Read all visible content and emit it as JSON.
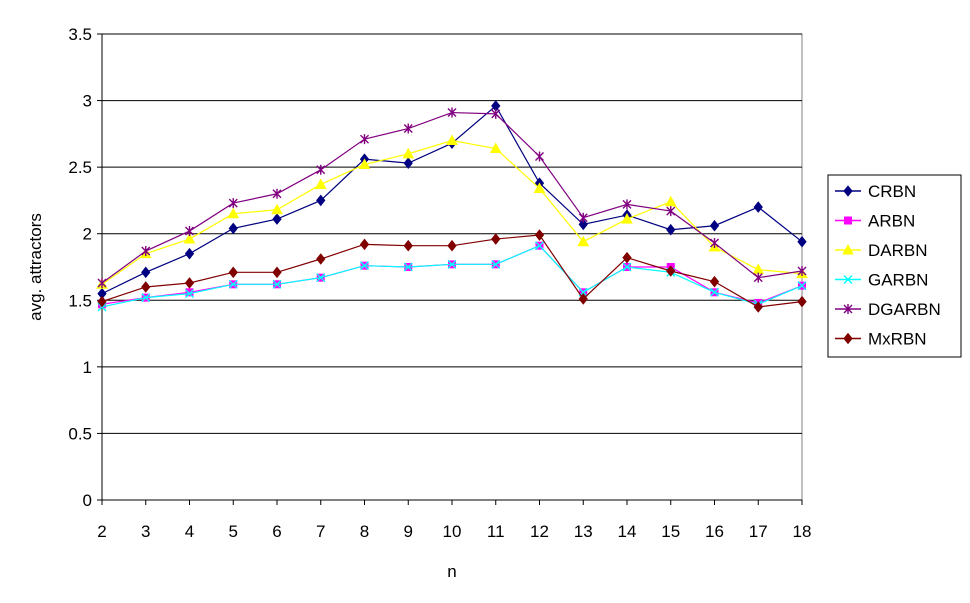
{
  "chart_data": {
    "type": "line",
    "title": "",
    "xlabel": "n",
    "ylabel": "avg. attractors",
    "x": [
      2,
      3,
      4,
      5,
      6,
      7,
      8,
      9,
      10,
      11,
      12,
      13,
      14,
      15,
      16,
      17,
      18
    ],
    "ylim": [
      0,
      3.5
    ],
    "yticks": [
      0,
      0.5,
      1,
      1.5,
      2,
      2.5,
      3,
      3.5
    ],
    "ytick_labels": [
      "0",
      "0.5",
      "1",
      "1.5",
      "2",
      "2.5",
      "3",
      "3.5"
    ],
    "grid": "horizontal",
    "legend_position": "right",
    "series": [
      {
        "name": "CRBN",
        "color": "#000080",
        "marker": "diamond",
        "values": [
          1.55,
          1.71,
          1.85,
          2.04,
          2.11,
          2.25,
          2.56,
          2.53,
          2.68,
          2.96,
          2.38,
          2.07,
          2.14,
          2.03,
          2.06,
          2.2,
          1.94
        ]
      },
      {
        "name": "ARBN",
        "color": "#ff00ff",
        "marker": "square",
        "values": [
          1.47,
          1.52,
          1.56,
          1.62,
          1.62,
          1.67,
          1.76,
          1.75,
          1.77,
          1.77,
          1.91,
          1.56,
          1.75,
          1.75,
          1.56,
          1.48,
          1.61
        ]
      },
      {
        "name": "DARBN",
        "color": "#ffff00",
        "marker": "triangle",
        "values": [
          1.62,
          1.85,
          1.96,
          2.15,
          2.18,
          2.37,
          2.52,
          2.6,
          2.7,
          2.64,
          2.34,
          1.94,
          2.11,
          2.24,
          1.9,
          1.73,
          1.7
        ]
      },
      {
        "name": "GARBN",
        "color": "#00ffff",
        "marker": "x",
        "values": [
          1.45,
          1.52,
          1.55,
          1.62,
          1.62,
          1.67,
          1.76,
          1.75,
          1.77,
          1.77,
          1.91,
          1.56,
          1.75,
          1.71,
          1.56,
          1.47,
          1.61
        ]
      },
      {
        "name": "DGARBN",
        "color": "#800080",
        "marker": "star",
        "values": [
          1.63,
          1.87,
          2.02,
          2.23,
          2.3,
          2.48,
          2.71,
          2.79,
          2.91,
          2.9,
          2.58,
          2.12,
          2.22,
          2.17,
          1.93,
          1.67,
          1.72
        ]
      },
      {
        "name": "MxRBN",
        "color": "#800000",
        "marker": "diamond",
        "values": [
          1.49,
          1.6,
          1.63,
          1.71,
          1.71,
          1.81,
          1.92,
          1.91,
          1.91,
          1.96,
          1.99,
          1.51,
          1.82,
          1.72,
          1.64,
          1.45,
          1.49
        ]
      }
    ]
  }
}
